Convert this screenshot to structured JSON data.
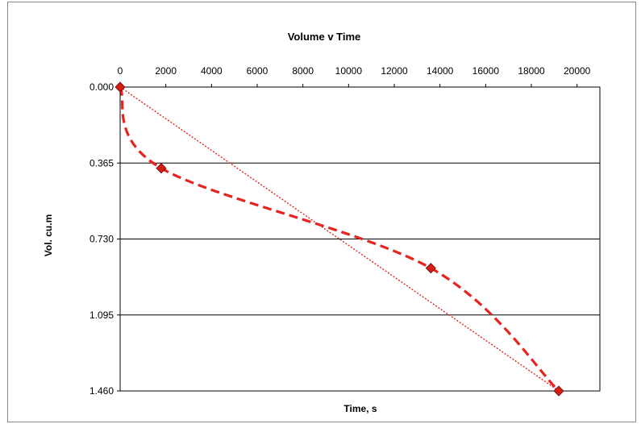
{
  "chart_data": {
    "type": "line",
    "title": "Volume v Time",
    "xlabel": "Time, s",
    "ylabel": "Vol. cu.m",
    "xlim": [
      0,
      21000
    ],
    "ylim": [
      0,
      1.46
    ],
    "y_inverted": true,
    "x_axis_position": "top",
    "x_ticks": [
      0,
      2000,
      4000,
      6000,
      8000,
      10000,
      12000,
      14000,
      16000,
      18000,
      20000
    ],
    "x_tick_labels": [
      "0",
      "2000",
      "4000",
      "6000",
      "8000",
      "10000",
      "12000",
      "14000",
      "16000",
      "18000",
      "20000"
    ],
    "y_ticks": [
      0,
      0.365,
      0.73,
      1.095,
      1.46
    ],
    "y_tick_labels": [
      "0.000",
      "0.365",
      "0.730",
      "1.095",
      "1.460"
    ],
    "grid": "horizontal",
    "series": [
      {
        "style": "dashed-curve",
        "color": "#e8231e",
        "marker": "diamond",
        "marker_fill": "#d81c14",
        "x": [
          0,
          1800,
          13600,
          19200
        ],
        "y": [
          0,
          0.39,
          0.87,
          1.46
        ]
      },
      {
        "style": "dotted-straight",
        "color": "#e8231e",
        "x": [
          0,
          19200
        ],
        "y": [
          0,
          1.46
        ]
      }
    ]
  }
}
